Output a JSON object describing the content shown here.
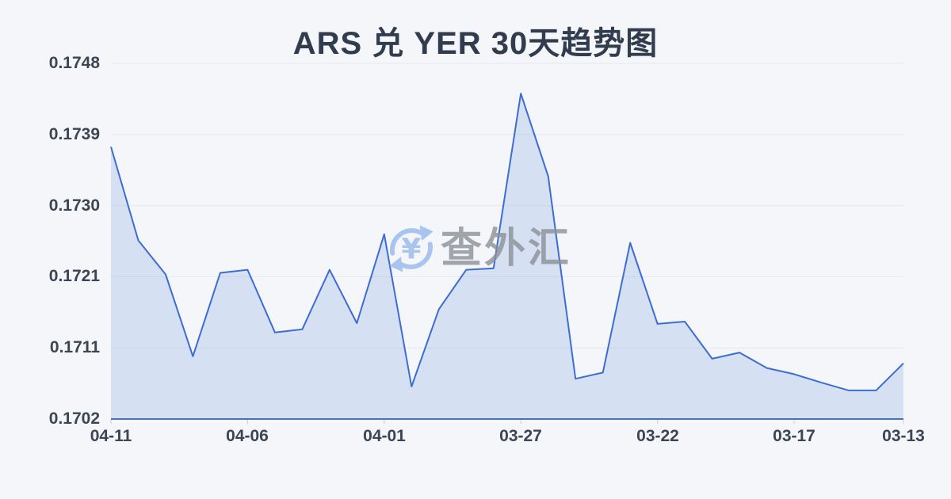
{
  "title": "ARS 兑 YER 30天趋势图",
  "watermark": {
    "icon": "currency-exchange-icon",
    "text": "查外汇"
  },
  "chart_data": {
    "type": "area",
    "title": "ARS 兑 YER 30天趋势图",
    "x": [
      "04-11",
      "04-10",
      "04-09",
      "04-08",
      "04-07",
      "04-06",
      "04-05",
      "04-04",
      "04-03",
      "04-02",
      "04-01",
      "03-31",
      "03-30",
      "03-29",
      "03-28",
      "03-27",
      "03-26",
      "03-25",
      "03-24",
      "03-23",
      "03-22",
      "03-21",
      "03-20",
      "03-19",
      "03-18",
      "03-17",
      "03-16",
      "03-15",
      "03-14",
      "03-13"
    ],
    "values": [
      0.17372,
      0.17251,
      0.17207,
      0.17101,
      0.17209,
      0.17213,
      0.17132,
      0.17136,
      0.17213,
      0.17144,
      0.17259,
      0.17062,
      0.17162,
      0.17213,
      0.17215,
      0.17441,
      0.17334,
      0.17072,
      0.1708,
      0.17248,
      0.17143,
      0.17146,
      0.17098,
      0.17106,
      0.17086,
      0.17078,
      0.17067,
      0.17057,
      0.17057,
      0.17092
    ],
    "y_ticks": [
      "0.1748",
      "0.1739",
      "0.1730",
      "0.1721",
      "0.1711",
      "0.1702"
    ],
    "x_ticks": [
      "04-11",
      "04-06",
      "04-01",
      "03-27",
      "03-22",
      "03-17",
      "03-13"
    ],
    "ylim": [
      0.1702,
      0.1748
    ],
    "grid": true,
    "legend": false,
    "colors": {
      "line": "#3d6dd2",
      "area_fill": "rgba(61,109,210,0.16)",
      "axis_line": "#4d72b4",
      "gridline": "#e5e8ed",
      "tick": "#c9cdd4",
      "background": "#f4f6f9",
      "title_text": "#313d4f",
      "axis_label_text": "#3b4553",
      "watermark_icon": "#a5c2ee",
      "watermark_text": "#8c9199"
    }
  }
}
